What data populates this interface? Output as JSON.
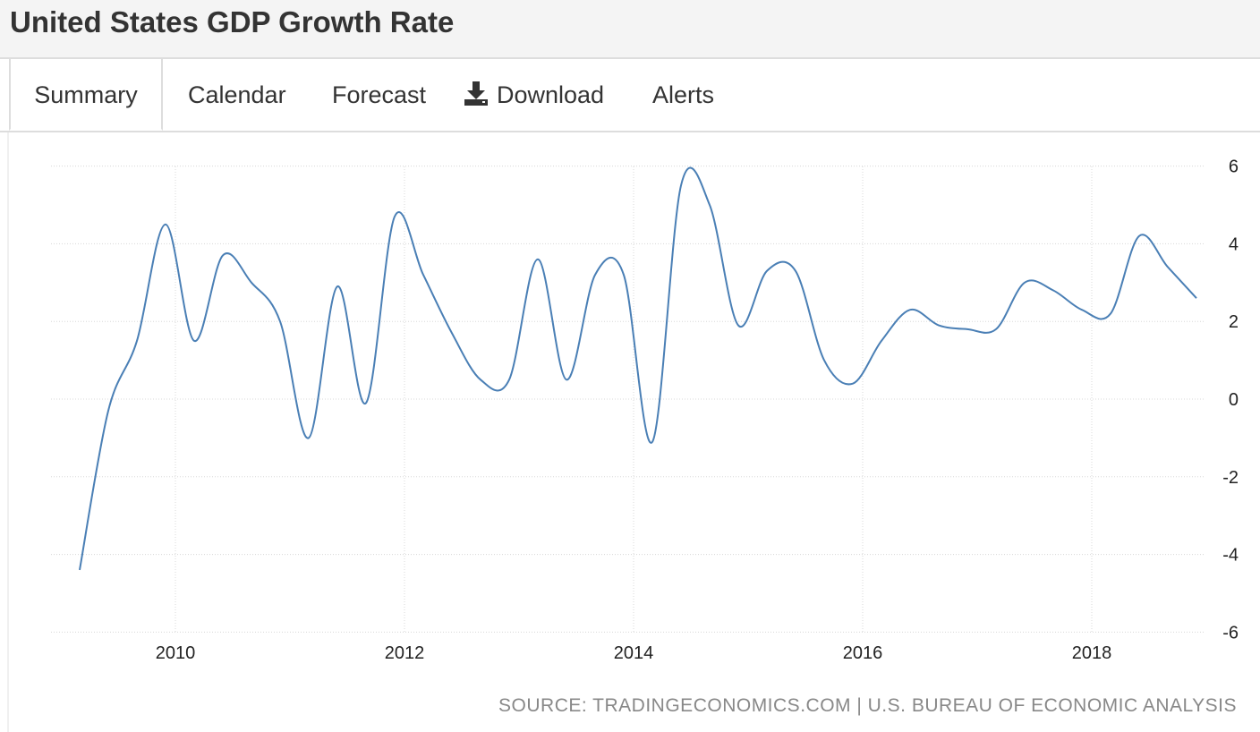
{
  "header": {
    "title": "United States GDP Growth Rate"
  },
  "tabs": [
    {
      "label": "Summary",
      "active": true
    },
    {
      "label": "Calendar"
    },
    {
      "label": "Forecast"
    },
    {
      "label": "Download",
      "icon": "download-icon"
    },
    {
      "label": "Alerts"
    }
  ],
  "source": "SOURCE: TRADINGECONOMICS.COM | U.S. BUREAU OF ECONOMIC ANALYSIS",
  "colors": {
    "line": "#4a7fb5",
    "grid": "#d8d8d8"
  },
  "chart_data": {
    "type": "line",
    "title": "United States GDP Growth Rate",
    "xlabel": "",
    "ylabel": "",
    "ylim": [
      -6,
      6
    ],
    "yticks": [
      "6",
      "4",
      "2",
      "0",
      "-2",
      "-4",
      "-6"
    ],
    "xticks": [
      "2010",
      "2012",
      "2014",
      "2016",
      "2018"
    ],
    "grid": true,
    "legend": "none",
    "x_start": "2009Q1",
    "x_step": "quarter",
    "series": [
      {
        "name": "GDP Growth Rate",
        "values": [
          -4.4,
          -0.3,
          1.5,
          4.5,
          1.5,
          3.7,
          3.0,
          2.0,
          -1.0,
          2.9,
          -0.1,
          4.7,
          3.2,
          1.7,
          0.5,
          0.5,
          3.6,
          0.5,
          3.2,
          3.2,
          -1.1,
          5.5,
          5.0,
          1.9,
          3.3,
          3.3,
          1.0,
          0.4,
          1.5,
          2.3,
          1.9,
          1.8,
          1.8,
          3.0,
          2.8,
          2.3,
          2.2,
          4.2,
          3.4,
          2.6
        ]
      }
    ]
  }
}
